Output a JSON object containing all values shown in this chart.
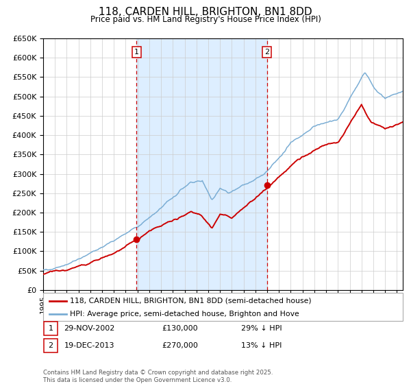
{
  "title": "118, CARDEN HILL, BRIGHTON, BN1 8DD",
  "subtitle": "Price paid vs. HM Land Registry's House Price Index (HPI)",
  "background_color": "#ffffff",
  "plot_bg_color": "#ffffff",
  "shaded_region_color": "#ddeeff",
  "grid_color": "#cccccc",
  "hpi_color": "#7aadd4",
  "price_color": "#cc0000",
  "ylim": [
    0,
    650000
  ],
  "ytick_step": 50000,
  "sale1": {
    "date": "29-NOV-2002",
    "price": 130000,
    "label": "1",
    "hpi_pct": "29% ↓ HPI",
    "x_year": 2002.92
  },
  "sale2": {
    "date": "19-DEC-2013",
    "price": 270000,
    "label": "2",
    "hpi_pct": "13% ↓ HPI",
    "x_year": 2013.97
  },
  "legend_line1": "118, CARDEN HILL, BRIGHTON, BN1 8DD (semi-detached house)",
  "legend_line2": "HPI: Average price, semi-detached house, Brighton and Hove",
  "footnote": "Contains HM Land Registry data © Crown copyright and database right 2025.\nThis data is licensed under the Open Government Licence v3.0.",
  "xmin": 1995.0,
  "xmax": 2025.5
}
